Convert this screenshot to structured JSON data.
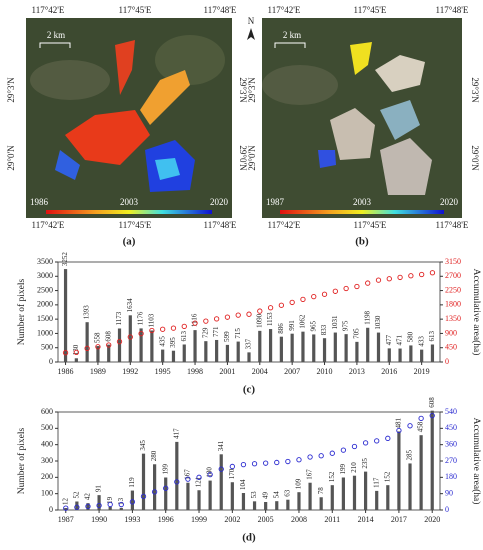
{
  "maps": [
    {
      "panel_label": "(a)",
      "lon_labels": [
        "117°42'E",
        "117°45'E",
        "117°48'E"
      ],
      "lat_labels": [
        "29°3'N",
        "29°0'N"
      ],
      "scale_label": "2 km",
      "legend_labels": [
        "1986",
        "2003",
        "2020"
      ]
    },
    {
      "panel_label": "(b)",
      "lon_labels": [
        "117°42'E",
        "117°45'E",
        "117°48'E"
      ],
      "lat_labels": [
        "29°3'N",
        "29°0'N"
      ],
      "scale_label": "2 km",
      "legend_labels": [
        "1987",
        "2003",
        "2020"
      ],
      "compass_label": "N"
    }
  ],
  "chart_data": [
    {
      "type": "bar",
      "panel_label": "(c)",
      "y_label": "Number of pixels",
      "y2_label": "Accumulative area(ha)",
      "x": [
        1986,
        1987,
        1988,
        1989,
        1990,
        1991,
        1992,
        1993,
        1994,
        1995,
        1996,
        1997,
        1998,
        1999,
        2000,
        2001,
        2002,
        2003,
        2004,
        2005,
        2006,
        2007,
        2008,
        2009,
        2010,
        2011,
        2012,
        2013,
        2014,
        2015,
        2016,
        2017,
        2018,
        2019,
        2020
      ],
      "xlim": [
        1985.3,
        2020.7
      ],
      "xticks": [
        1986,
        1989,
        1992,
        1995,
        1998,
        2001,
        2004,
        2007,
        2010,
        2013,
        2016,
        2019
      ],
      "ylim": [
        0,
        3500
      ],
      "yticks": [
        0,
        500,
        1000,
        1500,
        2000,
        2500,
        3000,
        3500
      ],
      "y2lim": [
        0,
        3150
      ],
      "y2ticks": [
        0,
        450,
        900,
        1350,
        1800,
        2250,
        2700,
        3150
      ],
      "series": [
        {
          "name": "Number of pixels",
          "color": "#555555",
          "values": [
            3252,
            130,
            1393,
            558,
            608,
            1173,
            1634,
            1176,
            1103,
            435,
            395,
            613,
            1116,
            729,
            771,
            599,
            715,
            337,
            1090,
            1153,
            886,
            991,
            1062,
            965,
            833,
            1031,
            975,
            705,
            1198,
            1030,
            477,
            471,
            580,
            433,
            613
          ]
        },
        {
          "name": "Accumulative area",
          "color": "#e02020",
          "axis": "y2",
          "values": [
            293,
            304,
            430,
            480,
            535,
            640,
            787,
            893,
            992,
            1032,
            1067,
            1122,
            1223,
            1288,
            1358,
            1412,
            1476,
            1506,
            1604,
            1708,
            1788,
            1877,
            1973,
            2060,
            2135,
            2227,
            2315,
            2379,
            2486,
            2579,
            2622,
            2664,
            2717,
            2756,
            2811
          ]
        }
      ]
    },
    {
      "type": "bar",
      "panel_label": "(d)",
      "y_label": "Number of pixels",
      "y2_label": "Accumulative area(ha)",
      "x": [
        1987,
        1988,
        1989,
        1990,
        1991,
        1992,
        1993,
        1994,
        1995,
        1996,
        1997,
        1998,
        1999,
        2000,
        2001,
        2002,
        2003,
        2004,
        2005,
        2006,
        2007,
        2008,
        2009,
        2010,
        2011,
        2012,
        2013,
        2014,
        2015,
        2016,
        2017,
        2018,
        2019,
        2020
      ],
      "xlim": [
        1986.3,
        2020.7
      ],
      "xticks": [
        1987,
        1990,
        1993,
        1996,
        1999,
        2002,
        2005,
        2008,
        2011,
        2014,
        2017,
        2020
      ],
      "ylim": [
        0,
        600
      ],
      "yticks": [
        0,
        100,
        200,
        300,
        400,
        500,
        600
      ],
      "y2lim": [
        0,
        540
      ],
      "y2ticks": [
        0,
        90,
        180,
        270,
        360,
        450,
        540
      ],
      "series": [
        {
          "name": "Number of pixels",
          "color": "#555555",
          "values": [
            12,
            52,
            42,
            91,
            19,
            13,
            119,
            345,
            280,
            199,
            417,
            167,
            121,
            180,
            341,
            170,
            104,
            53,
            49,
            54,
            63,
            109,
            167,
            78,
            152,
            199,
            210,
            235,
            117,
            152,
            481,
            285,
            458,
            608
          ]
        },
        {
          "name": "Accumulative area",
          "color": "#2a2ad0",
          "axis": "y2",
          "values": [
            10,
            15,
            20,
            25,
            30,
            30,
            45,
            75,
            100,
            120,
            155,
            170,
            180,
            195,
            225,
            240,
            250,
            255,
            258,
            262,
            267,
            277,
            292,
            299,
            313,
            330,
            350,
            370,
            381,
            395,
            438,
            464,
            505,
            520
          ]
        }
      ]
    }
  ]
}
